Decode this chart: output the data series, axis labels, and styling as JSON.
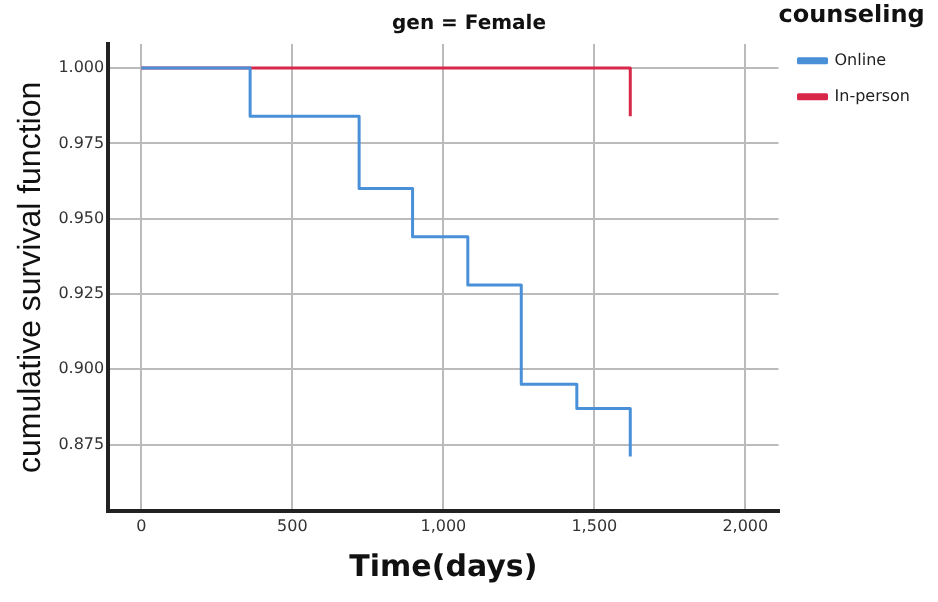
{
  "chart_data": {
    "type": "step",
    "title": "gen = Female",
    "xlabel": "Time(days)",
    "ylabel": "cumulative survival function",
    "legend_title": "counseling",
    "legend": "top right",
    "grid": true,
    "marker": "none",
    "line_style": "solid",
    "xlim": [
      -110,
      2110
    ],
    "xticks": [
      0,
      500,
      {
        "value": 1000,
        "label": "1,000"
      },
      {
        "value": 1500,
        "label": "1,500"
      },
      {
        "value": 2000,
        "label": "2,000"
      }
    ],
    "ylim": [
      0.853,
      1.008
    ],
    "yticks": [
      {
        "value": 0.875,
        "label": "0.875"
      },
      {
        "value": 0.9,
        "label": "0.900"
      },
      {
        "value": 0.925,
        "label": "0.925"
      },
      {
        "value": 0.95,
        "label": "0.950"
      },
      {
        "value": 0.975,
        "label": "0.975"
      },
      {
        "value": 1,
        "label": "1.000"
      }
    ],
    "series": [
      {
        "name": "Online",
        "color": "#4a90d9",
        "x": [
          0,
          360,
          721,
          898,
          1081,
          1258,
          1442,
          1619
        ],
        "values": [
          1,
          0.984,
          0.96,
          0.944,
          0.928,
          0.895,
          0.887,
          0.871
        ]
      },
      {
        "name": "In-person",
        "color": "#d8284a",
        "x": [
          0,
          1619
        ],
        "values": [
          1,
          0.984
        ]
      }
    ]
  }
}
